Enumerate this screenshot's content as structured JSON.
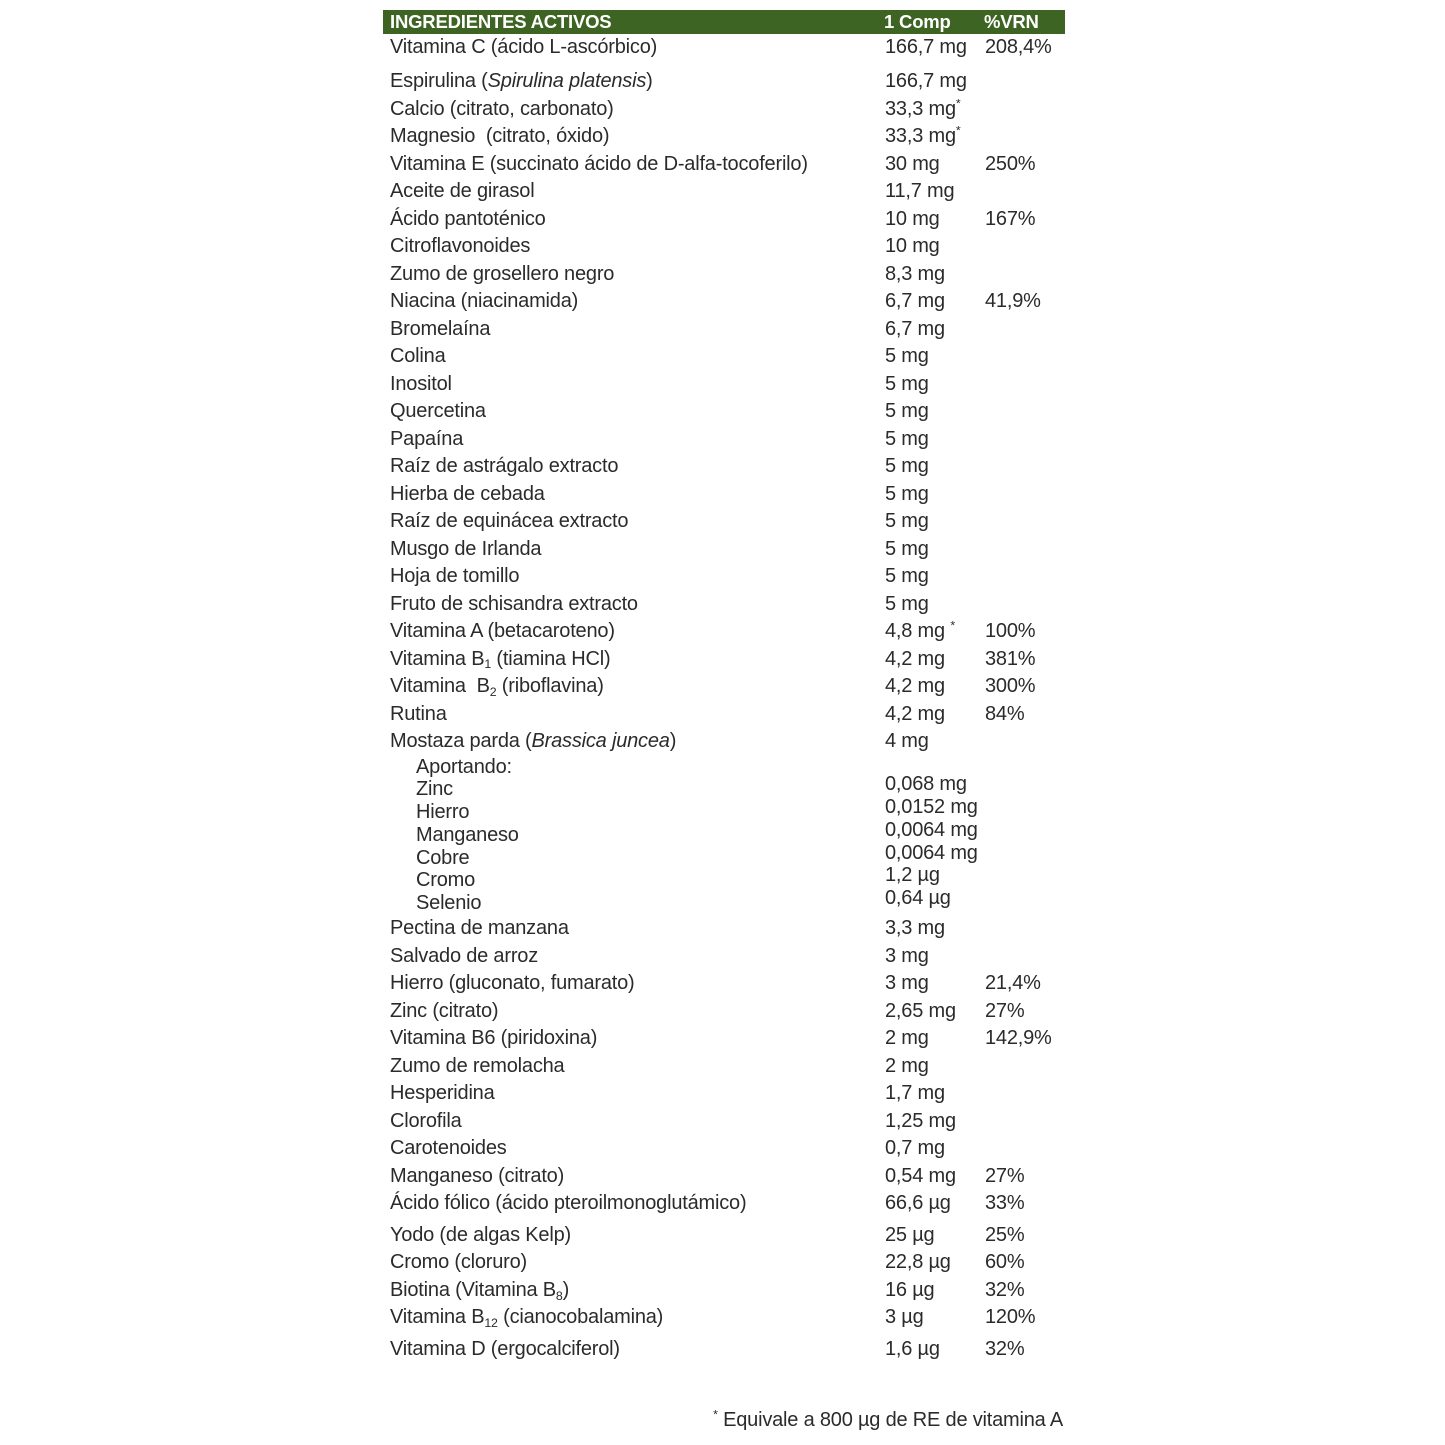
{
  "colors": {
    "header_bg": "#3e6423",
    "header_text": "#ffffff",
    "body_text": "#2b2b2b"
  },
  "header": {
    "ingredients": "INGREDIENTES ACTIVOS",
    "per": "1 Comp",
    "vrn": "%VRN"
  },
  "footnote": {
    "marker": "*",
    "text": " Equivale a 800 µg de RE de vitamina A"
  },
  "rows": [
    {
      "name": [
        [
          "Vitamina C (ácido L-ascórbico)"
        ]
      ],
      "amount": [
        [
          "166,7 mg"
        ]
      ],
      "vrn": "208,4%"
    },
    {
      "name": [
        [
          "Espirulina ("
        ],
        [
          "Spirulina platensis",
          "i"
        ],
        [
          ")"
        ]
      ],
      "amount": [
        [
          "166,7 mg"
        ]
      ],
      "gap": true
    },
    {
      "name": [
        [
          "Calcio (citrato, carbonato)"
        ]
      ],
      "amount": [
        [
          "33,3 mg"
        ],
        [
          "*",
          "sup"
        ]
      ]
    },
    {
      "name": [
        [
          "Magnesio  (citrato, óxido)"
        ]
      ],
      "amount": [
        [
          "33,3 mg"
        ],
        [
          "*",
          "sup"
        ]
      ]
    },
    {
      "name": [
        [
          "Vitamina E (succinato ácido de D-alfa-tocoferilo)"
        ]
      ],
      "amount": [
        [
          "30 mg"
        ]
      ],
      "vrn": "250%"
    },
    {
      "name": [
        [
          "Aceite de girasol"
        ]
      ],
      "amount": [
        [
          "11,7 mg"
        ]
      ]
    },
    {
      "name": [
        [
          "Ácido pantoténico"
        ]
      ],
      "amount": [
        [
          "10 mg"
        ]
      ],
      "vrn": "167%"
    },
    {
      "name": [
        [
          "Citroflavonoides"
        ]
      ],
      "amount": [
        [
          "10 mg"
        ]
      ]
    },
    {
      "name": [
        [
          "Zumo de grosellero negro"
        ]
      ],
      "amount": [
        [
          "8,3 mg"
        ]
      ]
    },
    {
      "name": [
        [
          "Niacina (niacinamida)"
        ]
      ],
      "amount": [
        [
          "6,7 mg"
        ]
      ],
      "vrn": "41,9%"
    },
    {
      "name": [
        [
          "Bromelaína"
        ]
      ],
      "amount": [
        [
          "6,7 mg"
        ]
      ]
    },
    {
      "name": [
        [
          "Colina"
        ]
      ],
      "amount": [
        [
          "5 mg"
        ]
      ]
    },
    {
      "name": [
        [
          "Inositol"
        ]
      ],
      "amount": [
        [
          "5 mg"
        ]
      ]
    },
    {
      "name": [
        [
          "Quercetina"
        ]
      ],
      "amount": [
        [
          "5 mg"
        ]
      ]
    },
    {
      "name": [
        [
          "Papaína"
        ]
      ],
      "amount": [
        [
          "5 mg"
        ]
      ]
    },
    {
      "name": [
        [
          "Raíz de astrágalo extracto"
        ]
      ],
      "amount": [
        [
          "5 mg"
        ]
      ]
    },
    {
      "name": [
        [
          "Hierba de cebada"
        ]
      ],
      "amount": [
        [
          "5 mg"
        ]
      ]
    },
    {
      "name": [
        [
          "Raíz de equinácea extracto"
        ]
      ],
      "amount": [
        [
          "5 mg"
        ]
      ]
    },
    {
      "name": [
        [
          "Musgo de Irlanda"
        ]
      ],
      "amount": [
        [
          "5 mg"
        ]
      ]
    },
    {
      "name": [
        [
          "Hoja de tomillo"
        ]
      ],
      "amount": [
        [
          "5 mg"
        ]
      ]
    },
    {
      "name": [
        [
          "Fruto de schisandra extracto"
        ]
      ],
      "amount": [
        [
          "5 mg"
        ]
      ]
    },
    {
      "name": [
        [
          "Vitamina A (betacaroteno)"
        ]
      ],
      "amount": [
        [
          "4,8 mg "
        ],
        [
          "*",
          "sup"
        ]
      ],
      "vrn": "100%"
    },
    {
      "name": [
        [
          "Vitamina B"
        ],
        [
          "1",
          "sub"
        ],
        [
          " (tiamina HCl)"
        ]
      ],
      "amount": [
        [
          "4,2 mg"
        ]
      ],
      "vrn": "381%"
    },
    {
      "name": [
        [
          "Vitamina  B"
        ],
        [
          "2",
          "sub"
        ],
        [
          " (riboflavina)"
        ]
      ],
      "amount": [
        [
          "4,2 mg"
        ]
      ],
      "vrn": "300%"
    },
    {
      "name": [
        [
          "Rutina"
        ]
      ],
      "amount": [
        [
          "4,2 mg"
        ]
      ],
      "vrn": "84%"
    },
    {
      "name": [
        [
          "Mostaza parda ("
        ],
        [
          "Brassica juncea",
          "i"
        ],
        [
          ")"
        ]
      ],
      "amount": [
        [
          "4 mg"
        ]
      ]
    },
    {
      "name": [
        [
          "Aportando:"
        ]
      ],
      "indent": true,
      "small": true
    },
    {
      "name": [
        [
          "Zinc"
        ]
      ],
      "amount": [
        [
          "0,068 mg"
        ]
      ],
      "indent": true,
      "small": true,
      "raised": true
    },
    {
      "name": [
        [
          "Hierro"
        ]
      ],
      "amount": [
        [
          "0,0152 mg"
        ]
      ],
      "indent": true,
      "small": true,
      "raised": true
    },
    {
      "name": [
        [
          "Manganeso"
        ]
      ],
      "amount": [
        [
          "0,0064 mg"
        ]
      ],
      "indent": true,
      "small": true,
      "raised": true
    },
    {
      "name": [
        [
          "Cobre"
        ]
      ],
      "amount": [
        [
          "0,0064 mg"
        ]
      ],
      "indent": true,
      "small": true,
      "raised": true
    },
    {
      "name": [
        [
          "Cromo"
        ]
      ],
      "amount": [
        [
          "1,2 µg"
        ]
      ],
      "indent": true,
      "small": true,
      "raised": true
    },
    {
      "name": [
        [
          "Selenio"
        ]
      ],
      "amount": [
        [
          "0,64 µg"
        ]
      ],
      "indent": true,
      "small": true,
      "raised": true
    },
    {
      "name": [
        [
          "Pectina de manzana"
        ]
      ],
      "amount": [
        [
          "3,3 mg"
        ]
      ]
    },
    {
      "name": [
        [
          "Salvado de arroz"
        ]
      ],
      "amount": [
        [
          "3 mg"
        ]
      ]
    },
    {
      "name": [
        [
          "Hierro (gluconato, fumarato)"
        ]
      ],
      "amount": [
        [
          "3 mg"
        ]
      ],
      "vrn": "21,4%"
    },
    {
      "name": [
        [
          "Zinc (citrato)"
        ]
      ],
      "amount": [
        [
          "2,65 mg"
        ]
      ],
      "vrn": "27%"
    },
    {
      "name": [
        [
          "Vitamina B6 (piridoxina)"
        ]
      ],
      "amount": [
        [
          "2 mg"
        ]
      ],
      "vrn": "142,9%"
    },
    {
      "name": [
        [
          "Zumo de remolacha"
        ]
      ],
      "amount": [
        [
          "2 mg"
        ]
      ]
    },
    {
      "name": [
        [
          "Hesperidina"
        ]
      ],
      "amount": [
        [
          "1,7 mg"
        ]
      ]
    },
    {
      "name": [
        [
          "Clorofila"
        ]
      ],
      "amount": [
        [
          "1,25 mg"
        ]
      ]
    },
    {
      "name": [
        [
          "Carotenoides"
        ]
      ],
      "amount": [
        [
          "0,7 mg"
        ]
      ]
    },
    {
      "name": [
        [
          "Manganeso (citrato)"
        ]
      ],
      "amount": [
        [
          "0,54 mg"
        ]
      ],
      "vrn": "27%"
    },
    {
      "name": [
        [
          "Ácido fólico (ácido pteroilmonoglutámico)"
        ]
      ],
      "amount": [
        [
          "66,6 µg"
        ]
      ],
      "vrn": "33%"
    },
    {
      "name": [
        [
          "Yodo (de algas Kelp)"
        ]
      ],
      "amount": [
        [
          "25 µg"
        ]
      ],
      "vrn": "25%",
      "gapSm": true
    },
    {
      "name": [
        [
          "Cromo (cloruro)"
        ]
      ],
      "amount": [
        [
          "22,8 µg"
        ]
      ],
      "vrn": "60%"
    },
    {
      "name": [
        [
          "Biotina (Vitamina B"
        ],
        [
          "8",
          "sub"
        ],
        [
          ")"
        ]
      ],
      "amount": [
        [
          "16 µg"
        ]
      ],
      "vrn": "32%"
    },
    {
      "name": [
        [
          "Vitamina B"
        ],
        [
          "12",
          "sub"
        ],
        [
          " (cianocobalamina)"
        ]
      ],
      "amount": [
        [
          "3 µg"
        ]
      ],
      "vrn": "120%"
    },
    {
      "name": [
        [
          "Vitamina D (ergocalciferol)"
        ]
      ],
      "amount": [
        [
          "1,6 µg"
        ]
      ],
      "vrn": "32%",
      "gapSm": true
    }
  ]
}
